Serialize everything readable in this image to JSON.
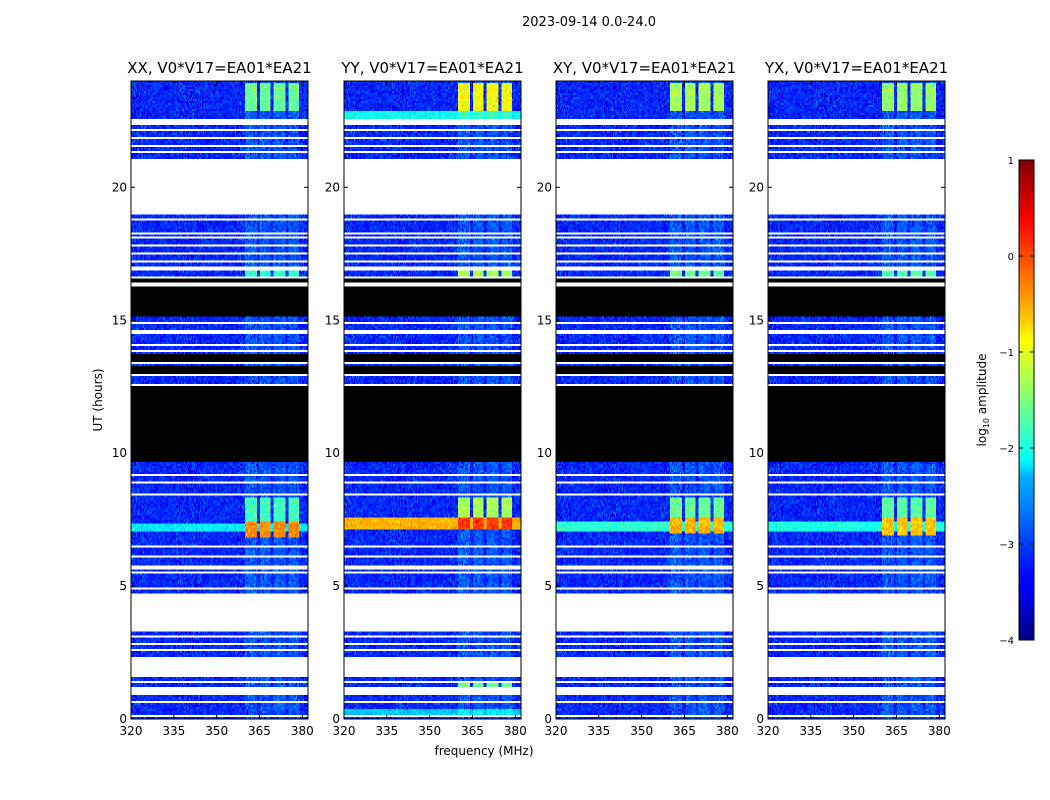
{
  "chart_data": {
    "type": "heatmap",
    "figure_title": "2023-09-14 0.0-24.0",
    "xlabel": "frequency (MHz)",
    "ylabel": "UT (hours)",
    "xlim": [
      320,
      382
    ],
    "ylim": [
      0,
      24
    ],
    "x_ticks": [
      "320",
      "335",
      "350",
      "365",
      "380"
    ],
    "x_tick_values": [
      320,
      335,
      350,
      365,
      380
    ],
    "y_ticks": [
      "0",
      "5",
      "10",
      "15",
      "20"
    ],
    "y_tick_values": [
      0,
      5,
      10,
      15,
      20
    ],
    "colormap": "jet",
    "colorbar": {
      "label_main": "log",
      "label_sub": "10",
      "label_rest": " amplitude",
      "range": [
        -4,
        1
      ],
      "ticks": [
        "−4",
        "−3",
        "−2",
        "−1",
        "0",
        "1"
      ],
      "tick_values": [
        -4,
        -3,
        -2,
        -1,
        0,
        1
      ]
    },
    "base_level": -3.2,
    "rfi_bands_mhz": [
      [
        360,
        364
      ],
      [
        365,
        369
      ],
      [
        370,
        374
      ],
      [
        375,
        379
      ]
    ],
    "white_gaps_hours": [
      [
        0.08,
        0.18
      ],
      [
        0.6,
        0.7
      ],
      [
        0.92,
        1.22
      ],
      [
        1.38,
        1.46
      ],
      [
        1.6,
        2.35
      ],
      [
        2.55,
        2.62
      ],
      [
        2.75,
        2.82
      ],
      [
        3.05,
        3.12
      ],
      [
        3.3,
        4.72
      ],
      [
        4.9,
        4.98
      ],
      [
        5.45,
        5.55
      ],
      [
        5.65,
        5.75
      ],
      [
        6.05,
        6.12
      ],
      [
        6.45,
        6.55
      ],
      [
        8.4,
        8.5
      ],
      [
        8.85,
        8.93
      ],
      [
        9.15,
        9.22
      ],
      [
        12.5,
        12.57
      ],
      [
        12.9,
        12.97
      ],
      [
        13.35,
        13.42
      ],
      [
        13.8,
        13.86
      ],
      [
        14.05,
        14.1
      ],
      [
        14.5,
        14.6
      ],
      [
        14.85,
        14.92
      ],
      [
        16.25,
        16.4
      ],
      [
        16.55,
        16.62
      ],
      [
        16.9,
        17.0
      ],
      [
        17.15,
        17.22
      ],
      [
        17.45,
        17.52
      ],
      [
        17.8,
        17.87
      ],
      [
        18.05,
        18.12
      ],
      [
        18.25,
        18.3
      ],
      [
        18.5,
        18.55
      ],
      [
        18.75,
        18.82
      ],
      [
        19.0,
        21.05
      ],
      [
        21.3,
        21.38
      ],
      [
        21.55,
        21.62
      ],
      [
        21.8,
        21.87
      ],
      [
        22.1,
        22.17
      ],
      [
        22.35,
        22.55
      ]
    ],
    "no_data_hours": [
      [
        9.7,
        12.5
      ],
      [
        13.0,
        13.3
      ],
      [
        13.45,
        13.75
      ],
      [
        15.15,
        16.25
      ],
      [
        16.4,
        16.55
      ]
    ],
    "panels": [
      {
        "title": "XX, V0*V17=EA01*EA21",
        "rfi_events": [
          {
            "t0": 6.85,
            "t1": 7.45,
            "level": -0.3
          },
          {
            "t0": 7.45,
            "t1": 8.3,
            "level": -1.8
          },
          {
            "t0": 22.9,
            "t1": 23.9,
            "level": -1.6
          },
          {
            "t0": 16.6,
            "t1": 17.0,
            "level": -1.9
          }
        ],
        "wide_events": [
          {
            "t0": 7.05,
            "t1": 7.35,
            "level": -2.2
          }
        ]
      },
      {
        "title": "YY, V0*V17=EA01*EA21",
        "rfi_events": [
          {
            "t0": 7.1,
            "t1": 7.6,
            "level": 0.1
          },
          {
            "t0": 7.6,
            "t1": 8.3,
            "level": -1.3
          },
          {
            "t0": 22.9,
            "t1": 23.9,
            "level": -0.9
          },
          {
            "t0": 16.6,
            "t1": 17.0,
            "level": -1.3
          },
          {
            "t0": 1.2,
            "t1": 1.35,
            "level": -1.6
          }
        ],
        "wide_events": [
          {
            "t0": 7.15,
            "t1": 7.55,
            "level": -0.5
          },
          {
            "t0": 22.5,
            "t1": 22.9,
            "level": -2.1
          },
          {
            "t0": 0.1,
            "t1": 0.4,
            "level": -2.4
          }
        ]
      },
      {
        "title": "XY, V0*V17=EA01*EA21",
        "rfi_events": [
          {
            "t0": 7.0,
            "t1": 7.55,
            "level": -0.5
          },
          {
            "t0": 7.55,
            "t1": 8.3,
            "level": -1.6
          },
          {
            "t0": 22.9,
            "t1": 23.9,
            "level": -1.3
          },
          {
            "t0": 16.6,
            "t1": 17.0,
            "level": -1.6
          }
        ],
        "wide_events": [
          {
            "t0": 7.05,
            "t1": 7.45,
            "level": -1.9
          }
        ]
      },
      {
        "title": "YX, V0*V17=EA01*EA21",
        "rfi_events": [
          {
            "t0": 6.9,
            "t1": 7.55,
            "level": -0.6
          },
          {
            "t0": 7.55,
            "t1": 8.3,
            "level": -1.7
          },
          {
            "t0": 22.9,
            "t1": 23.9,
            "level": -1.4
          },
          {
            "t0": 16.6,
            "t1": 17.0,
            "level": -1.7
          }
        ],
        "wide_events": [
          {
            "t0": 7.05,
            "t1": 7.4,
            "level": -2.0
          }
        ]
      }
    ]
  }
}
